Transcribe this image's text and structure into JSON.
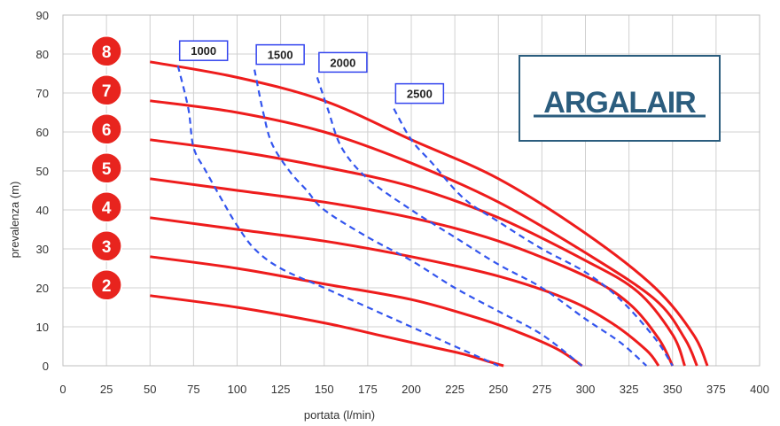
{
  "chart_data": {
    "type": "line",
    "title": "",
    "xlabel": "portata (l/min)",
    "ylabel": "prevalenza (m)",
    "xlim": [
      0,
      400
    ],
    "ylim": [
      0,
      90
    ],
    "x_ticks": [
      0,
      25,
      50,
      75,
      100,
      125,
      150,
      175,
      200,
      225,
      250,
      275,
      300,
      325,
      350,
      375,
      400
    ],
    "y_ticks": [
      0,
      10,
      20,
      30,
      40,
      50,
      60,
      70,
      80,
      90
    ],
    "grid": true,
    "series": [
      {
        "name": "2",
        "style": "solid",
        "color": "#ee1c1c",
        "x": [
          50,
          100,
          150,
          180,
          210,
          230,
          245,
          253
        ],
        "y": [
          18,
          15,
          11,
          8,
          5,
          3,
          1,
          0
        ]
      },
      {
        "name": "3",
        "style": "solid",
        "color": "#ee1c1c",
        "x": [
          50,
          100,
          150,
          200,
          240,
          265,
          285,
          298
        ],
        "y": [
          28,
          25,
          21,
          17,
          12,
          8,
          4,
          0
        ]
      },
      {
        "name": "4",
        "style": "solid",
        "color": "#ee1c1c",
        "x": [
          50,
          100,
          150,
          200,
          250,
          290,
          315,
          335,
          342
        ],
        "y": [
          38,
          35,
          32,
          28,
          23,
          17,
          11,
          4,
          0
        ]
      },
      {
        "name": "5",
        "style": "solid",
        "color": "#ee1c1c",
        "x": [
          50,
          100,
          150,
          200,
          250,
          300,
          325,
          342,
          350
        ],
        "y": [
          48,
          45,
          42,
          38,
          32,
          23,
          16,
          7,
          0
        ]
      },
      {
        "name": "6",
        "style": "solid",
        "color": "#ee1c1c",
        "x": [
          50,
          100,
          150,
          200,
          250,
          300,
          330,
          350,
          357
        ],
        "y": [
          58,
          55,
          51,
          46,
          38,
          27,
          19,
          8,
          0
        ]
      },
      {
        "name": "7",
        "style": "solid",
        "color": "#ee1c1c",
        "x": [
          50,
          100,
          150,
          200,
          250,
          300,
          340,
          357,
          364
        ],
        "y": [
          68,
          65,
          60,
          52,
          42,
          29,
          17,
          7,
          0
        ]
      },
      {
        "name": "8",
        "style": "solid",
        "color": "#ee1c1c",
        "x": [
          50,
          100,
          150,
          200,
          250,
          300,
          340,
          362,
          370
        ],
        "y": [
          78,
          74,
          68,
          58,
          48,
          34,
          20,
          8,
          0
        ]
      },
      {
        "name": "1000",
        "style": "dashed",
        "color": "#3355ee",
        "x": [
          66,
          72,
          75,
          82,
          92,
          100,
          110,
          125,
          150,
          175,
          200,
          225,
          250
        ],
        "y": [
          77,
          66,
          56,
          50,
          42,
          36,
          30,
          25,
          20,
          15,
          10,
          5,
          0
        ]
      },
      {
        "name": "1500",
        "style": "dashed",
        "color": "#3355ee",
        "x": [
          110,
          115,
          120,
          130,
          140,
          150,
          175,
          200,
          225,
          250,
          275,
          298
        ],
        "y": [
          76,
          65,
          57,
          50,
          45,
          40,
          33,
          27,
          20,
          14,
          8,
          0
        ]
      },
      {
        "name": "2000",
        "style": "dashed",
        "color": "#3355ee",
        "x": [
          146,
          152,
          160,
          175,
          200,
          225,
          250,
          275,
          300,
          320,
          335
        ],
        "y": [
          74,
          66,
          56,
          48,
          40,
          33,
          26,
          20,
          12,
          6,
          0
        ]
      },
      {
        "name": "2500",
        "style": "dashed",
        "color": "#3355ee",
        "x": [
          190,
          200,
          212,
          230,
          250,
          275,
          300,
          320,
          340,
          350
        ],
        "y": [
          66,
          58,
          52,
          43,
          37,
          30,
          24,
          17,
          7,
          0
        ]
      }
    ],
    "curve_badges": [
      "8",
      "7",
      "6",
      "5",
      "4",
      "3",
      "2"
    ],
    "rpm_labels": [
      {
        "text": "1000",
        "series": "1000"
      },
      {
        "text": "1500",
        "series": "1500"
      },
      {
        "text": "2000",
        "series": "2000"
      },
      {
        "text": "2500",
        "series": "2500"
      }
    ],
    "logo": {
      "text": "ARGALAIR",
      "color": "#2b5d7e"
    }
  }
}
